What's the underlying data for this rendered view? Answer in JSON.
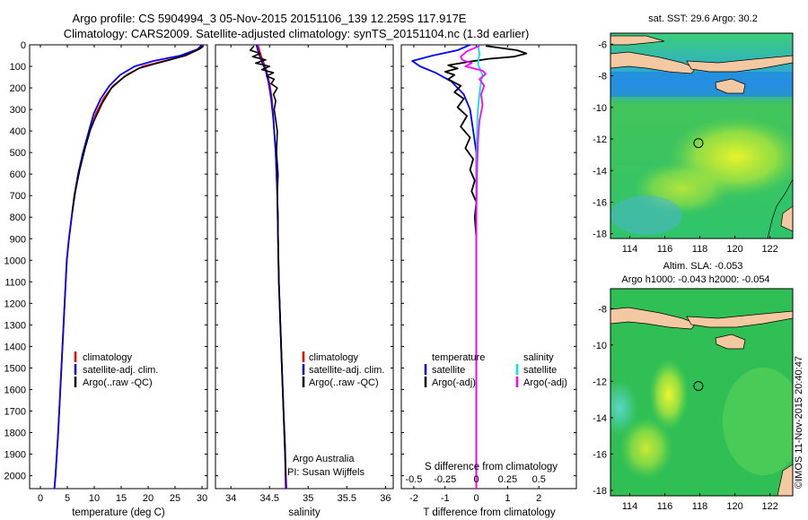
{
  "header": {
    "line1": "Argo profile: CS 5904994_3 05-Nov-2015 20151106_139 12.259S 117.917E",
    "line2": "Climatology: CARS2009. Satellite-adjusted climatology: synTS_20151104.nc (1.3d earlier)"
  },
  "colors": {
    "climatology": "#ff0000",
    "satellite": "#0000ff",
    "argo": "#000000",
    "satellite_salinity": "#00e5e5",
    "argo_salinity_adj": "#ff00ff",
    "land": "#f4c8a0"
  },
  "depth_axis": {
    "ylim": [
      2060,
      0
    ],
    "ticks": [
      "0",
      "100",
      "200",
      "300",
      "400",
      "500",
      "600",
      "700",
      "800",
      "900",
      "1000",
      "1100",
      "1200",
      "1300",
      "1400",
      "1500",
      "1600",
      "1700",
      "1800",
      "1900",
      "2000"
    ]
  },
  "chart_data": [
    {
      "type": "line",
      "name": "temperature",
      "xlabel": "temperature (deg C)",
      "xlim": [
        -2,
        31
      ],
      "xticks": [
        "0",
        "5",
        "10",
        "15",
        "20",
        "25",
        "30"
      ],
      "legend": [
        "climatology",
        "satellite-adj. clim.",
        "Argo(..raw -QC)"
      ],
      "series": [
        {
          "name": "climatology",
          "color": "#ff0000",
          "points": [
            [
              30.2,
              0
            ],
            [
              29.5,
              20
            ],
            [
              27,
              50
            ],
            [
              23,
              75
            ],
            [
              19,
              100
            ],
            [
              16,
              140
            ],
            [
              13.5,
              190
            ],
            [
              11.7,
              250
            ],
            [
              10.3,
              320
            ],
            [
              9.2,
              400
            ],
            [
              8,
              500
            ],
            [
              7.1,
              600
            ],
            [
              6.3,
              700
            ],
            [
              5.8,
              800
            ],
            [
              5.3,
              900
            ],
            [
              4.9,
              1000
            ],
            [
              4.5,
              1200
            ],
            [
              4.1,
              1400
            ],
            [
              3.7,
              1600
            ],
            [
              3.3,
              1800
            ],
            [
              2.8,
              2000
            ],
            [
              2.6,
              2060
            ]
          ]
        },
        {
          "name": "satellite-adj. clim.",
          "color": "#0000ff",
          "points": [
            [
              30,
              0
            ],
            [
              29.2,
              20
            ],
            [
              26,
              50
            ],
            [
              21,
              75
            ],
            [
              17.5,
              100
            ],
            [
              14.8,
              140
            ],
            [
              12.8,
              190
            ],
            [
              11.2,
              250
            ],
            [
              9.9,
              320
            ],
            [
              9,
              400
            ],
            [
              7.9,
              500
            ],
            [
              7,
              600
            ],
            [
              6.3,
              700
            ],
            [
              5.8,
              800
            ],
            [
              5.3,
              900
            ],
            [
              4.9,
              1000
            ],
            [
              4.5,
              1200
            ],
            [
              4.1,
              1400
            ],
            [
              3.7,
              1600
            ],
            [
              3.3,
              1800
            ],
            [
              2.8,
              2000
            ],
            [
              2.6,
              2060
            ]
          ]
        },
        {
          "name": "Argo(..raw -QC)",
          "color": "#000000",
          "points": [
            [
              30.3,
              5
            ],
            [
              29.8,
              15
            ],
            [
              28.6,
              30
            ],
            [
              26.8,
              50
            ],
            [
              24,
              70
            ],
            [
              21,
              90
            ],
            [
              18.2,
              110
            ],
            [
              15.5,
              150
            ],
            [
              13.2,
              200
            ],
            [
              11.5,
              270
            ],
            [
              10,
              350
            ],
            [
              9.2,
              400
            ],
            [
              8.3,
              480
            ],
            [
              7.3,
              580
            ],
            [
              6.5,
              680
            ],
            [
              5.9,
              780
            ]
          ]
        }
      ]
    },
    {
      "type": "line",
      "name": "salinity",
      "xlabel": "salinity",
      "xlim": [
        33.8,
        36.1
      ],
      "xticks": [
        "34",
        "34.5",
        "35",
        "35.5",
        "36"
      ],
      "legend": [
        "climatology",
        "satellite-adj. clim.",
        "Argo(..raw -QC)"
      ],
      "annotation": [
        "Argo Australia",
        "PI: Susan Wijffels"
      ],
      "series": [
        {
          "name": "climatology",
          "color": "#ff0000",
          "points": [
            [
              34.35,
              0
            ],
            [
              34.38,
              40
            ],
            [
              34.42,
              80
            ],
            [
              34.46,
              120
            ],
            [
              34.5,
              180
            ],
            [
              34.53,
              250
            ],
            [
              34.55,
              350
            ],
            [
              34.58,
              500
            ],
            [
              34.6,
              700
            ],
            [
              34.61,
              900
            ],
            [
              34.62,
              1100
            ],
            [
              34.64,
              1300
            ],
            [
              34.66,
              1500
            ],
            [
              34.68,
              1700
            ],
            [
              34.7,
              1900
            ],
            [
              34.72,
              2060
            ]
          ]
        },
        {
          "name": "satellite-adj. clim.",
          "color": "#0000ff",
          "points": [
            [
              34.33,
              0
            ],
            [
              34.36,
              40
            ],
            [
              34.4,
              80
            ],
            [
              34.45,
              120
            ],
            [
              34.49,
              180
            ],
            [
              34.52,
              250
            ],
            [
              34.55,
              350
            ],
            [
              34.58,
              500
            ],
            [
              34.6,
              700
            ],
            [
              34.61,
              900
            ],
            [
              34.62,
              1100
            ],
            [
              34.64,
              1300
            ],
            [
              34.66,
              1500
            ],
            [
              34.68,
              1700
            ],
            [
              34.7,
              1900
            ],
            [
              34.71,
              2060
            ]
          ]
        },
        {
          "name": "Argo(..raw -QC)",
          "color": "#000000",
          "points": [
            [
              34.3,
              5
            ],
            [
              34.25,
              25
            ],
            [
              34.38,
              40
            ],
            [
              34.28,
              55
            ],
            [
              34.45,
              70
            ],
            [
              34.32,
              85
            ],
            [
              34.5,
              100
            ],
            [
              34.4,
              115
            ],
            [
              34.55,
              130
            ],
            [
              34.46,
              145
            ],
            [
              34.56,
              160
            ],
            [
              34.52,
              180
            ],
            [
              34.6,
              200
            ],
            [
              34.55,
              230
            ],
            [
              34.58,
              260
            ],
            [
              34.56,
              300
            ],
            [
              34.6,
              400
            ],
            [
              34.59,
              500
            ],
            [
              34.61,
              600
            ],
            [
              34.6,
              700
            ],
            [
              34.61,
              800
            ],
            [
              34.61,
              900
            ],
            [
              34.62,
              1100
            ],
            [
              34.64,
              1300
            ],
            [
              34.66,
              1500
            ],
            [
              34.68,
              1700
            ],
            [
              34.7,
              1850
            ],
            [
              34.71,
              2000
            ]
          ]
        }
      ]
    },
    {
      "type": "line",
      "name": "difference from climatology",
      "xlabel": "T difference from climatology",
      "xlabel_top": "S difference from climatology",
      "xlim": [
        -2.4,
        3.2
      ],
      "xticks": [
        "-2",
        "-1",
        "0",
        "1",
        "2"
      ],
      "xticks_top": [
        "-0.5",
        "-0.25",
        "0",
        "0.25",
        "0.5"
      ],
      "legend_left_title": "temperature",
      "legend_right_title": "salinity",
      "legend_left": [
        "satellite",
        "Argo(-adj)"
      ],
      "legend_right": [
        "satellite",
        "Argo(-adj)"
      ],
      "series": [
        {
          "name": "temperature satellite",
          "color": "#0000ff",
          "points": [
            [
              -0.2,
              0
            ],
            [
              -0.6,
              25
            ],
            [
              -1.4,
              50
            ],
            [
              -2.05,
              75
            ],
            [
              -1.8,
              100
            ],
            [
              -1.3,
              130
            ],
            [
              -0.8,
              170
            ],
            [
              -0.4,
              230
            ],
            [
              -0.2,
              300
            ],
            [
              -0.1,
              400
            ],
            [
              0,
              500
            ],
            [
              0,
              2060
            ]
          ]
        },
        {
          "name": "temperature Argo(-adj)",
          "color": "#000000",
          "points": [
            [
              0.3,
              5
            ],
            [
              0.8,
              15
            ],
            [
              1.3,
              25
            ],
            [
              1.6,
              40
            ],
            [
              1.2,
              55
            ],
            [
              0.4,
              65
            ],
            [
              -0.3,
              80
            ],
            [
              -0.9,
              95
            ],
            [
              -0.6,
              110
            ],
            [
              -1,
              125
            ],
            [
              -0.7,
              140
            ],
            [
              -0.9,
              160
            ],
            [
              -0.5,
              190
            ],
            [
              -0.7,
              220
            ],
            [
              -0.4,
              250
            ],
            [
              -0.6,
              290
            ],
            [
              -0.3,
              330
            ],
            [
              -0.5,
              380
            ],
            [
              -0.2,
              430
            ],
            [
              -0.35,
              480
            ],
            [
              -0.1,
              530
            ],
            [
              -0.2,
              580
            ],
            [
              -0.05,
              630
            ],
            [
              -0.15,
              680
            ],
            [
              0,
              730
            ],
            [
              -0.05,
              800
            ],
            [
              0,
              900
            ],
            [
              0,
              2060
            ]
          ]
        },
        {
          "name": "salinity satellite",
          "color": "#00e5e5",
          "points": [
            [
              0.05,
              0
            ],
            [
              0.1,
              40
            ],
            [
              0.05,
              90
            ],
            [
              0.2,
              140
            ],
            [
              0.12,
              200
            ],
            [
              0.05,
              300
            ],
            [
              0.02,
              400
            ],
            [
              0.01,
              600
            ],
            [
              0,
              800
            ],
            [
              0,
              2060
            ]
          ]
        },
        {
          "name": "salinity Argo(-adj)",
          "color": "#ff00ff",
          "points": [
            [
              0.1,
              5
            ],
            [
              -0.3,
              30
            ],
            [
              -0.5,
              55
            ],
            [
              -0.45,
              70
            ],
            [
              -0.15,
              85
            ],
            [
              -0.35,
              100
            ],
            [
              0.2,
              120
            ],
            [
              0.3,
              135
            ],
            [
              0.1,
              160
            ],
            [
              0.25,
              190
            ],
            [
              0.15,
              230
            ],
            [
              0.2,
              280
            ],
            [
              0.1,
              350
            ],
            [
              0.05,
              450
            ],
            [
              0.02,
              600
            ],
            [
              0,
              800
            ],
            [
              0,
              2060
            ]
          ]
        }
      ]
    }
  ],
  "maps": [
    {
      "title": "sat. SST: 29.6  Argo: 30.2",
      "xticks": [
        "114",
        "116",
        "118",
        "120",
        "122"
      ],
      "yticks": [
        "-6",
        "-8",
        "-10",
        "-12",
        "-14",
        "-16",
        "-18"
      ],
      "xlim": [
        112.9,
        123.3
      ],
      "ylim": [
        -18.3,
        -5.3
      ],
      "marker": {
        "lon": 117.917,
        "lat": -12.259
      }
    },
    {
      "title": "Altim. SLA: -0.053",
      "subtitle": "Argo h1000: -0.043  h2000: -0.054",
      "xticks": [
        "114",
        "116",
        "118",
        "120",
        "122"
      ],
      "yticks": [
        "-8",
        "-10",
        "-12",
        "-14",
        "-16",
        "-18"
      ],
      "xlim": [
        112.9,
        123.3
      ],
      "ylim": [
        -18.3,
        -6.9
      ],
      "marker": {
        "lon": 117.917,
        "lat": -12.259
      }
    }
  ],
  "credit": "©IMOS 11-Nov-2015 20:40:47"
}
